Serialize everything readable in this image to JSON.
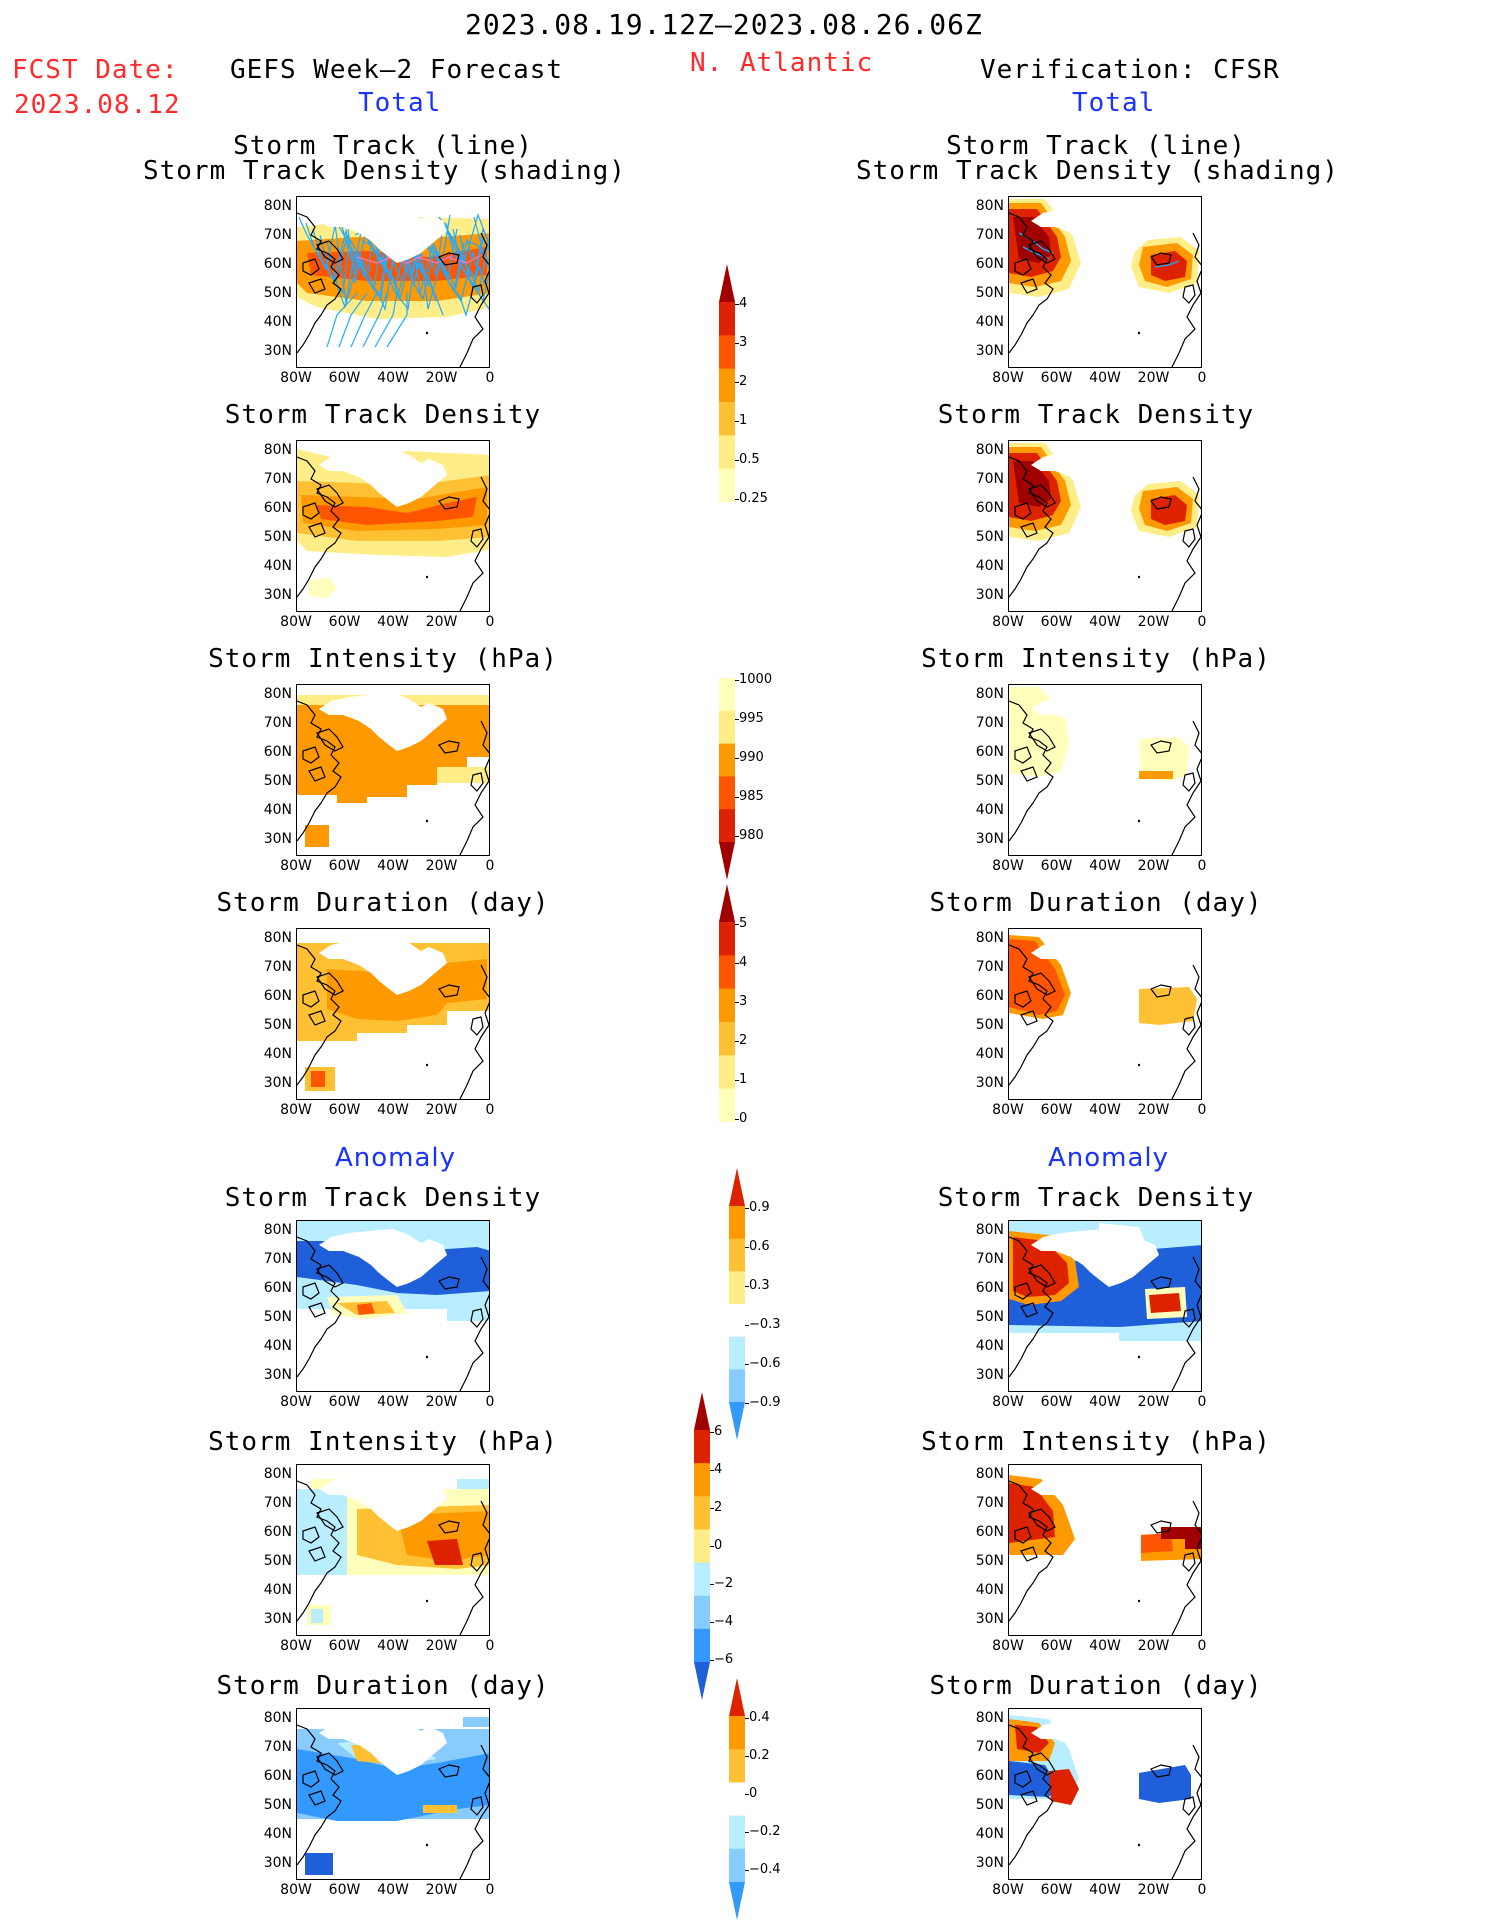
{
  "header": {
    "period": "2023.08.19.12Z–2023.08.26.06Z",
    "fcst_label": "FCST Date:",
    "fcst_date": "2023.08.12",
    "region": "N. Atlantic",
    "left_title": "GEFS Week–2 Forecast",
    "right_title": "Verification: CFSR",
    "left_subtitle": "Total",
    "right_subtitle": "Total",
    "anomaly_left": "Anomaly",
    "anomaly_right": "Anomaly"
  },
  "panel_titles": {
    "track_line": "Storm Track (line)",
    "track_shading": "Storm Track Density (shading)",
    "density": "Storm Track Density",
    "intensity": "Storm Intensity (hPa)",
    "duration": "Storm Duration (day)"
  },
  "axes": {
    "lat_labels": [
      "80N",
      "70N",
      "60N",
      "50N",
      "40N",
      "30N"
    ],
    "lon_labels": [
      "80W",
      "60W",
      "40W",
      "20W",
      "0"
    ]
  },
  "colorbars": {
    "density": [
      "4",
      "3",
      "2",
      "1",
      "0.5",
      "0.25"
    ],
    "intensity": [
      "1000",
      "995",
      "990",
      "985",
      "980"
    ],
    "duration": [
      "5",
      "4",
      "3",
      "2",
      "1",
      "0"
    ],
    "anom_density": [
      "0.9",
      "0.6",
      "0.3",
      "−0.3",
      "−0.6",
      "−0.9"
    ],
    "anom_intensity": [
      "6",
      "4",
      "2",
      "0",
      "−2",
      "−4",
      "−6"
    ],
    "anom_duration": [
      "0.4",
      "0.2",
      "0",
      "−0.2",
      "−0.4"
    ]
  },
  "colors": {
    "dark_red": "#a00000",
    "red": "#dd2200",
    "orange_red": "#ff5500",
    "orange": "#ff9900",
    "light_orange": "#ffc033",
    "yellow": "#ffee88",
    "pale_yellow": "#ffffbb",
    "pale_blue": "#b8eeff",
    "light_blue": "#88ccff",
    "mid_blue": "#3399ff",
    "blue": "#1f5fd9",
    "track_blue": "#22aaff"
  }
}
